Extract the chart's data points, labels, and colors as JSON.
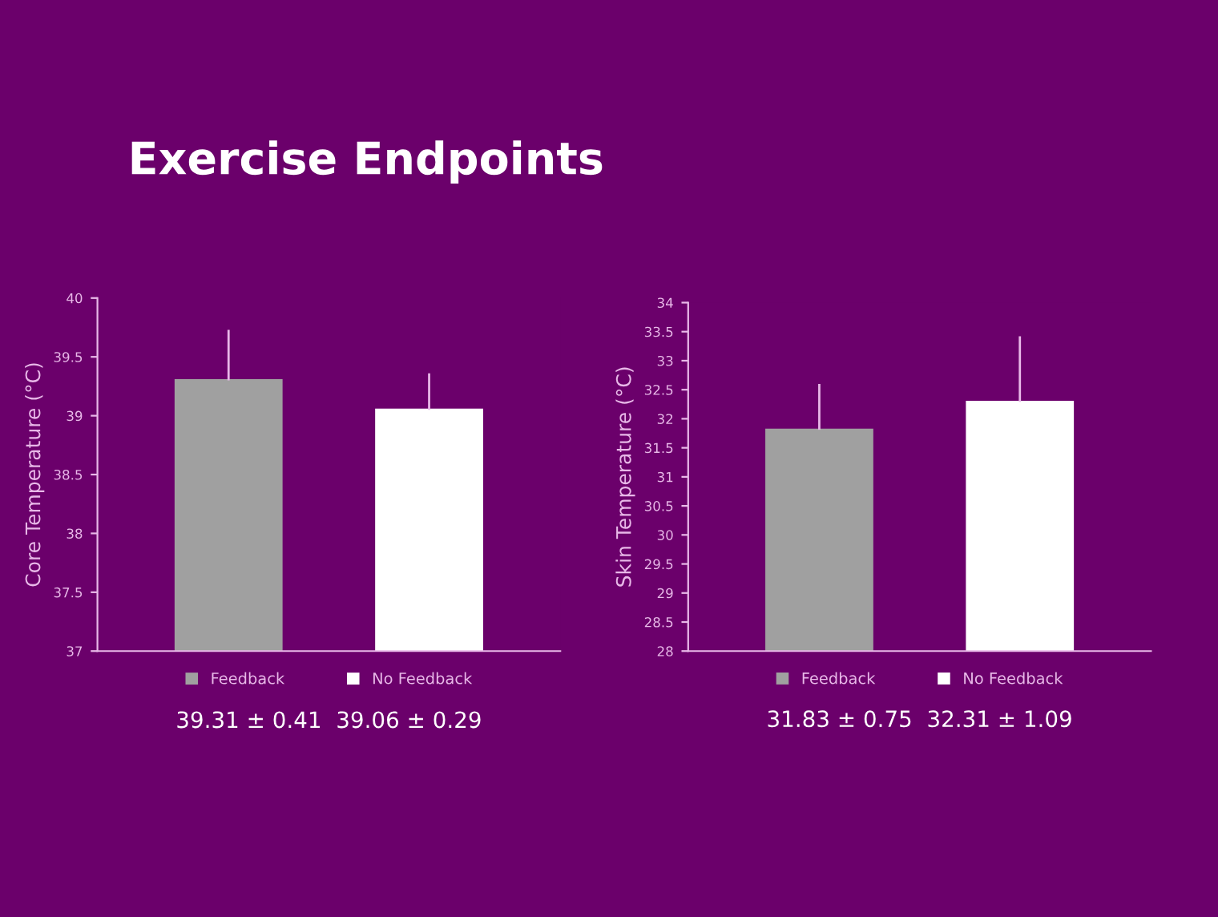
{
  "chart_data": [
    {
      "type": "bar",
      "title": "Exercise Endpoints",
      "ylabel": "Core Temperature (°C)",
      "categories": [
        null
      ],
      "series": [
        {
          "name": "Feedback",
          "color": "#a0a0a0",
          "values": [
            39.31
          ],
          "errors": [
            [
              39.31,
              39.72
            ]
          ]
        },
        {
          "name": "No Feedback",
          "color": "#ffffff",
          "values": [
            39.06
          ],
          "errors": [
            [
              39.06,
              39.35
            ]
          ]
        }
      ],
      "ylim": [
        37,
        40
      ],
      "yticks": [
        37,
        37.5,
        38,
        38.5,
        39,
        39.5,
        40
      ],
      "legend": "bottom",
      "grid": false,
      "annotations": [
        "39.31 ± 0.41  39.06 ± 0.29"
      ]
    },
    {
      "type": "bar",
      "ylabel": "Skin Temperature (°C)",
      "categories": [
        null
      ],
      "series": [
        {
          "name": "Feedback",
          "color": "#a0a0a0",
          "values": [
            31.83
          ],
          "errors": [
            [
              31.83,
              32.58
            ]
          ]
        },
        {
          "name": "No Feedback",
          "color": "#ffffff",
          "values": [
            32.31
          ],
          "errors": [
            [
              32.31,
              33.4
            ]
          ]
        }
      ],
      "ylim": [
        28,
        34
      ],
      "yticks": [
        28,
        28.5,
        29,
        29.5,
        30,
        30.5,
        31,
        31.5,
        32,
        32.5,
        33,
        33.5,
        34
      ],
      "legend": "bottom",
      "grid": false,
      "annotations": [
        "31.83 ± 0.75  32.31 ± 1.09"
      ]
    }
  ]
}
